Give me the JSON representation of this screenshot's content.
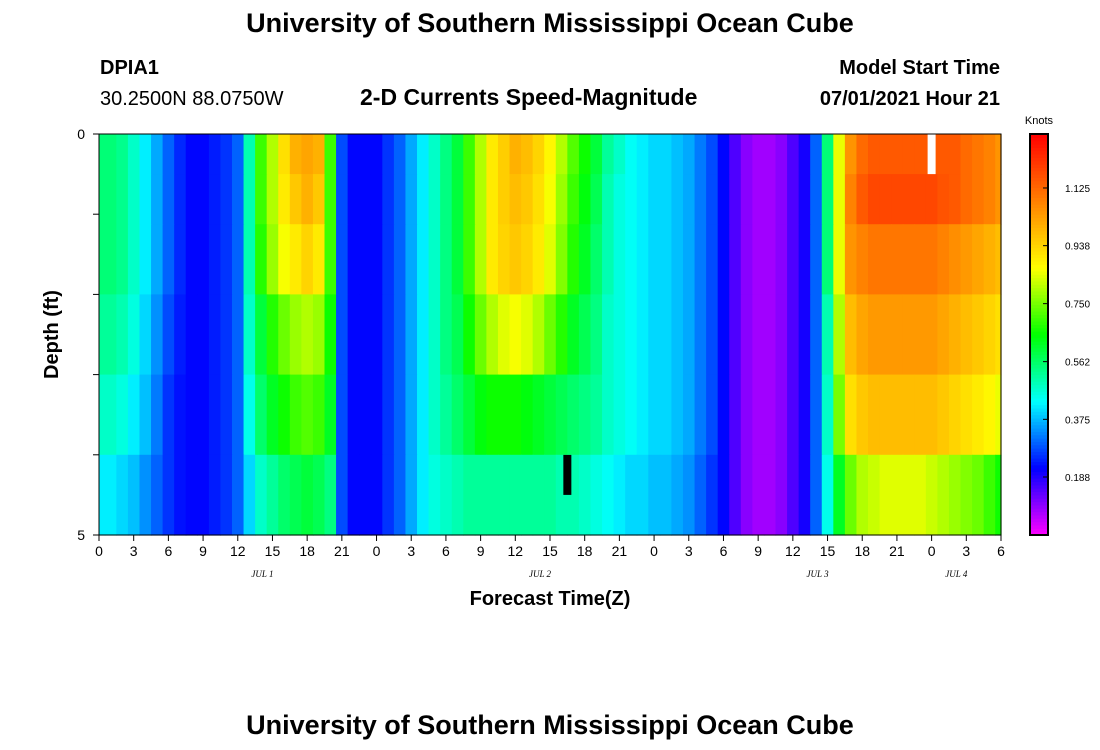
{
  "header": {
    "title": "University of Southern Mississippi Ocean Cube",
    "station": "DPIA1",
    "location": "30.2500N  88.0750W",
    "product": "2-D Currents Speed-Magnitude",
    "model_start_label": "Model Start Time",
    "model_start_value": "07/01/2021 Hour 21"
  },
  "footer": {
    "title": "University of Southern Mississippi Ocean Cube"
  },
  "chart_data": {
    "type": "heatmap",
    "title": "2-D Currents Speed-Magnitude",
    "xlabel": "Forecast Time(Z)",
    "ylabel": "Depth (ft)",
    "x_tick_labels": [
      "0",
      "3",
      "6",
      "9",
      "12",
      "15",
      "18",
      "21",
      "0",
      "3",
      "6",
      "9",
      "12",
      "15",
      "18",
      "21",
      "0",
      "3",
      "6",
      "9",
      "12",
      "15",
      "18",
      "21",
      "0",
      "3",
      "6"
    ],
    "date_labels": [
      "JUL 1",
      "JUL 2",
      "JUL 3",
      "JUL 4"
    ],
    "y_tick_labels": [
      "0",
      "5"
    ],
    "ylim": [
      0,
      5
    ],
    "colorbar": {
      "unit": "Knots",
      "ticks": [
        0.188,
        0.375,
        0.562,
        0.75,
        0.938,
        1.125
      ],
      "tick_labels": [
        "0.188",
        "0.375",
        "0.562",
        "0.750",
        "0.938",
        "1.125"
      ],
      "range": [
        0,
        1.3
      ],
      "colors": [
        "#ff00ff",
        "#0000ff",
        "#00ffff",
        "#00ff00",
        "#ffff00",
        "#ff8000",
        "#ff0000"
      ]
    },
    "markers": [
      {
        "hour": 72,
        "depth": 0.5,
        "color": "#ffffff"
      },
      {
        "hour": 40.5,
        "depth": 4.5,
        "color": "#000000"
      }
    ],
    "depth_levels": [
      0.25,
      0.75,
      1.5,
      2.5,
      3.5,
      4.5
    ],
    "time_step_hours": 1,
    "time_start_hour": 0,
    "series": [
      {
        "depth": 0.25,
        "values": [
          0.55,
          0.55,
          0.53,
          0.48,
          0.42,
          0.36,
          0.3,
          0.25,
          0.22,
          0.22,
          0.24,
          0.26,
          0.3,
          0.5,
          0.7,
          0.8,
          0.92,
          1.0,
          1.02,
          1.0,
          0.7,
          0.28,
          0.22,
          0.22,
          0.22,
          0.26,
          0.3,
          0.36,
          0.42,
          0.48,
          0.54,
          0.6,
          0.7,
          0.8,
          0.9,
          0.95,
          1.0,
          0.98,
          0.94,
          0.88,
          0.8,
          0.72,
          0.66,
          0.6,
          0.52,
          0.48,
          0.44,
          0.42,
          0.4,
          0.4,
          0.38,
          0.36,
          0.32,
          0.28,
          0.22,
          0.15,
          0.1,
          0.08,
          0.08,
          0.1,
          0.15,
          0.2,
          0.3,
          0.55,
          0.85,
          1.05,
          1.12,
          1.15,
          1.15,
          1.15,
          1.15,
          1.15,
          1.15,
          1.15,
          1.15,
          1.12,
          1.1,
          1.08,
          1.05
        ]
      },
      {
        "depth": 0.75,
        "values": [
          0.55,
          0.55,
          0.53,
          0.48,
          0.42,
          0.36,
          0.3,
          0.25,
          0.22,
          0.22,
          0.24,
          0.26,
          0.3,
          0.5,
          0.7,
          0.8,
          0.9,
          0.96,
          1.0,
          0.96,
          0.7,
          0.28,
          0.22,
          0.22,
          0.22,
          0.26,
          0.3,
          0.36,
          0.42,
          0.48,
          0.54,
          0.6,
          0.7,
          0.8,
          0.9,
          0.95,
          0.98,
          0.96,
          0.92,
          0.86,
          0.78,
          0.7,
          0.64,
          0.58,
          0.5,
          0.46,
          0.44,
          0.42,
          0.4,
          0.4,
          0.38,
          0.36,
          0.32,
          0.28,
          0.22,
          0.15,
          0.1,
          0.08,
          0.08,
          0.1,
          0.15,
          0.2,
          0.3,
          0.55,
          0.85,
          1.08,
          1.15,
          1.18,
          1.18,
          1.18,
          1.18,
          1.18,
          1.18,
          1.16,
          1.15,
          1.12,
          1.1,
          1.08,
          1.05
        ]
      },
      {
        "depth": 1.5,
        "values": [
          0.55,
          0.55,
          0.53,
          0.48,
          0.42,
          0.36,
          0.3,
          0.25,
          0.22,
          0.22,
          0.24,
          0.26,
          0.3,
          0.5,
          0.68,
          0.78,
          0.86,
          0.9,
          0.94,
          0.9,
          0.7,
          0.28,
          0.22,
          0.22,
          0.22,
          0.26,
          0.3,
          0.36,
          0.42,
          0.48,
          0.54,
          0.6,
          0.7,
          0.8,
          0.9,
          0.94,
          0.96,
          0.94,
          0.9,
          0.84,
          0.76,
          0.68,
          0.62,
          0.56,
          0.5,
          0.46,
          0.44,
          0.42,
          0.4,
          0.4,
          0.38,
          0.36,
          0.32,
          0.28,
          0.22,
          0.15,
          0.1,
          0.08,
          0.08,
          0.1,
          0.15,
          0.2,
          0.3,
          0.55,
          0.85,
          1.05,
          1.08,
          1.1,
          1.1,
          1.1,
          1.1,
          1.1,
          1.1,
          1.08,
          1.06,
          1.04,
          1.02,
          1.0,
          0.98
        ]
      },
      {
        "depth": 2.5,
        "values": [
          0.52,
          0.52,
          0.5,
          0.46,
          0.4,
          0.34,
          0.28,
          0.24,
          0.22,
          0.22,
          0.24,
          0.26,
          0.3,
          0.48,
          0.6,
          0.68,
          0.74,
          0.78,
          0.8,
          0.78,
          0.66,
          0.28,
          0.22,
          0.22,
          0.22,
          0.26,
          0.3,
          0.36,
          0.42,
          0.48,
          0.54,
          0.58,
          0.66,
          0.74,
          0.8,
          0.84,
          0.86,
          0.84,
          0.8,
          0.74,
          0.68,
          0.62,
          0.58,
          0.54,
          0.48,
          0.46,
          0.44,
          0.42,
          0.4,
          0.4,
          0.38,
          0.36,
          0.32,
          0.28,
          0.22,
          0.15,
          0.1,
          0.08,
          0.08,
          0.1,
          0.15,
          0.2,
          0.3,
          0.5,
          0.8,
          0.98,
          1.02,
          1.04,
          1.04,
          1.04,
          1.04,
          1.04,
          1.04,
          1.02,
          1.0,
          0.98,
          0.96,
          0.94,
          0.92
        ]
      },
      {
        "depth": 3.5,
        "values": [
          0.48,
          0.48,
          0.46,
          0.42,
          0.38,
          0.32,
          0.26,
          0.23,
          0.22,
          0.22,
          0.24,
          0.26,
          0.3,
          0.45,
          0.56,
          0.62,
          0.66,
          0.7,
          0.72,
          0.7,
          0.62,
          0.28,
          0.22,
          0.22,
          0.22,
          0.26,
          0.3,
          0.36,
          0.42,
          0.48,
          0.52,
          0.56,
          0.6,
          0.64,
          0.66,
          0.66,
          0.66,
          0.64,
          0.62,
          0.6,
          0.58,
          0.56,
          0.54,
          0.52,
          0.48,
          0.46,
          0.44,
          0.42,
          0.4,
          0.4,
          0.38,
          0.36,
          0.32,
          0.28,
          0.22,
          0.15,
          0.1,
          0.08,
          0.08,
          0.1,
          0.15,
          0.2,
          0.3,
          0.48,
          0.75,
          0.92,
          0.96,
          0.98,
          0.98,
          0.98,
          0.98,
          0.98,
          0.98,
          0.96,
          0.94,
          0.92,
          0.9,
          0.88,
          0.85
        ]
      },
      {
        "depth": 4.5,
        "values": [
          0.42,
          0.42,
          0.4,
          0.38,
          0.34,
          0.3,
          0.26,
          0.23,
          0.22,
          0.22,
          0.24,
          0.26,
          0.3,
          0.4,
          0.48,
          0.52,
          0.56,
          0.58,
          0.6,
          0.58,
          0.54,
          0.28,
          0.22,
          0.22,
          0.22,
          0.26,
          0.3,
          0.36,
          0.42,
          0.46,
          0.48,
          0.5,
          0.52,
          0.52,
          0.52,
          0.52,
          0.52,
          0.52,
          0.52,
          0.52,
          0.5,
          0.5,
          0.48,
          0.46,
          0.44,
          0.42,
          0.4,
          0.4,
          0.38,
          0.38,
          0.36,
          0.34,
          0.3,
          0.26,
          0.22,
          0.15,
          0.1,
          0.08,
          0.08,
          0.1,
          0.15,
          0.2,
          0.3,
          0.45,
          0.62,
          0.74,
          0.8,
          0.82,
          0.84,
          0.84,
          0.84,
          0.84,
          0.82,
          0.8,
          0.78,
          0.76,
          0.74,
          0.7,
          0.66
        ]
      }
    ]
  }
}
